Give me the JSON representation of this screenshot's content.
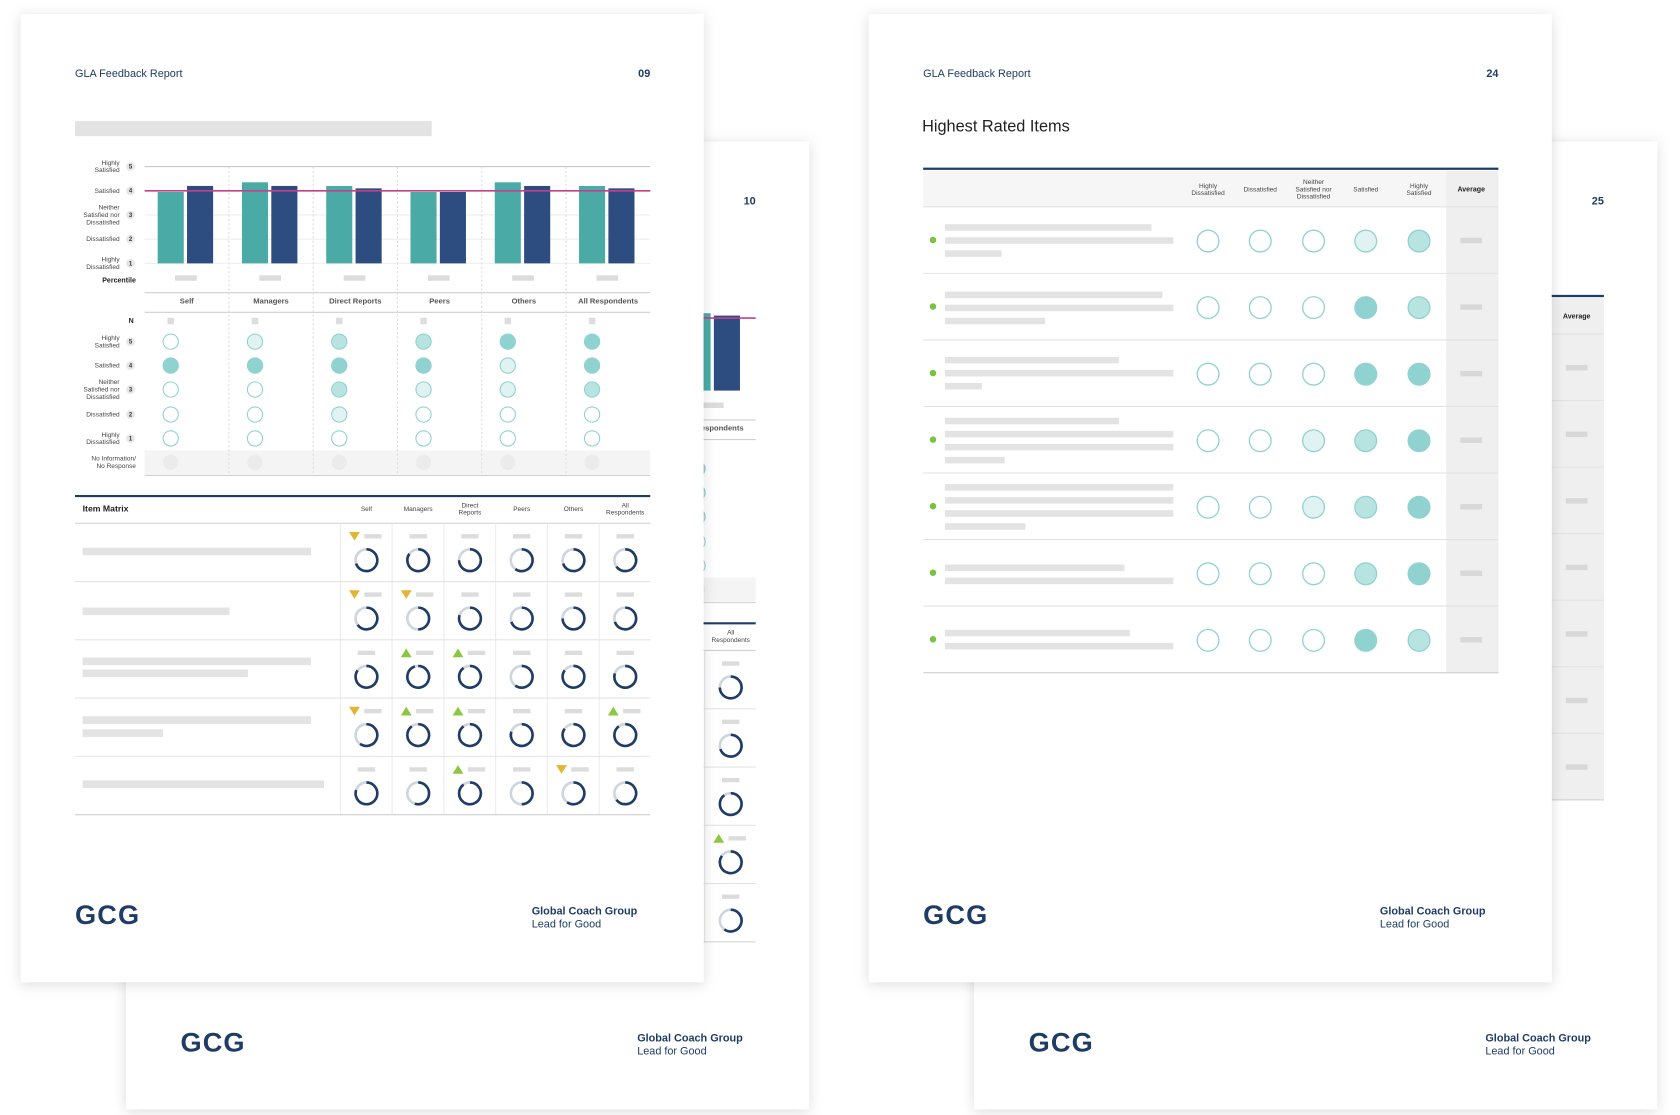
{
  "level_colors": [
    "#ffffff",
    "#e0f3f2",
    "#b7e3e1",
    "#90d2cf"
  ],
  "bar_colors": [
    "#4aaba6",
    "#2d4c80"
  ],
  "reference_color": "#c63f8b",
  "pages": [
    {
      "header": "GLA Feedback Report",
      "page_number": "09",
      "rating_labels": [
        [
          "Highly",
          "Satisfied"
        ],
        [
          "Satisfied"
        ],
        [
          "Neither",
          "Satisfied nor",
          "Dissatisfied"
        ],
        [
          "Dissatisfied"
        ],
        [
          "Highly",
          "Dissatisfied"
        ]
      ],
      "rating_numbers": [
        5,
        4,
        3,
        2,
        1
      ],
      "ylim": [
        1,
        5
      ],
      "reference": 4,
      "percentile_label": "Percentile",
      "n_label": "N",
      "no_response_label": [
        "No Information/",
        "No Response"
      ],
      "groups": [
        {
          "name": "Self",
          "values": [
            3.95,
            4.2
          ],
          "dot_levels": [
            0,
            3,
            0,
            0,
            0
          ]
        },
        {
          "name": "Managers",
          "values": [
            4.35,
            4.2
          ],
          "dot_levels": [
            1,
            3,
            0,
            0,
            0
          ]
        },
        {
          "name": "Direct Reports",
          "values": [
            4.2,
            4.1
          ],
          "dot_levels": [
            2,
            3,
            2,
            1,
            0
          ]
        },
        {
          "name": "Peers",
          "values": [
            3.95,
            3.95
          ],
          "dot_levels": [
            2,
            3,
            1,
            0,
            0
          ]
        },
        {
          "name": "Others",
          "values": [
            4.35,
            4.2
          ],
          "dot_levels": [
            3,
            1,
            1,
            0,
            0
          ]
        },
        {
          "name": "All Respondents",
          "values": [
            4.2,
            4.1
          ],
          "dot_levels": [
            3,
            3,
            2,
            0,
            0
          ]
        }
      ],
      "item_matrix": {
        "title": "Item Matrix",
        "columns": [
          [
            "Self"
          ],
          [
            "Managers"
          ],
          [
            "Direct",
            "Reports"
          ],
          [
            "Peers"
          ],
          [
            "Others"
          ],
          [
            "All",
            "Respondents"
          ]
        ],
        "rows": [
          [
            0.7,
            0.85,
            0.75,
            0.6,
            0.7,
            0.65
          ],
          [
            0.65,
            0.5,
            0.8,
            0.7,
            0.75,
            0.7
          ],
          [
            0.85,
            0.95,
            0.9,
            0.6,
            0.85,
            0.8
          ],
          [
            0.6,
            0.9,
            0.9,
            0.8,
            0.85,
            0.9
          ],
          [
            0.8,
            0.55,
            0.9,
            0.5,
            0.6,
            0.65
          ]
        ]
      },
      "footer": {
        "logo": "GCG",
        "company": "Global Coach Group",
        "tagline": "Lead for Good"
      }
    },
    {
      "page_number": "10",
      "ylim": [
        1,
        5
      ],
      "reference": 4,
      "groups": [
        {
          "name": "All Respondents",
          "values": [
            4.2,
            4.1
          ],
          "dot_levels": [
            3,
            2,
            2,
            0,
            0
          ]
        }
      ],
      "item_matrix": {
        "columns": [
          [
            "All",
            "Respondents"
          ]
        ],
        "rows": [
          [
            0.75
          ],
          [
            0.7
          ],
          [
            0.9
          ],
          [
            0.85
          ],
          [
            0.6
          ]
        ]
      },
      "footer": {
        "logo": "GCG",
        "company": "Global Coach Group",
        "tagline": "Lead for Good"
      }
    },
    {
      "header": "GLA Feedback Report",
      "page_number": "24",
      "title": "Highest Rated Items",
      "columns": [
        [
          "Highly",
          "Dissatisfied"
        ],
        [
          "Dissatisfied"
        ],
        [
          "Neither",
          "Satisfied nor",
          "Dissatisfied"
        ],
        [
          "Satisfied"
        ],
        [
          "Highly",
          "Satisfied"
        ]
      ],
      "average_label": "Average",
      "rows": [
        [
          0,
          0,
          0,
          1,
          2
        ],
        [
          0,
          0,
          0,
          3,
          2
        ],
        [
          0,
          0,
          0,
          3,
          3
        ],
        [
          0,
          0,
          1,
          2,
          3
        ],
        [
          0,
          0,
          1,
          2,
          3
        ],
        [
          0,
          0,
          0,
          2,
          3
        ],
        [
          0,
          0,
          0,
          3,
          2
        ]
      ],
      "footer": {
        "logo": "GCG",
        "company": "Global Coach Group",
        "tagline": "Lead for Good"
      }
    },
    {
      "page_number": "25",
      "average_label": "Average",
      "footer": {
        "logo": "GCG",
        "company": "Global Coach Group",
        "tagline": "Lead for Good"
      }
    }
  ]
}
